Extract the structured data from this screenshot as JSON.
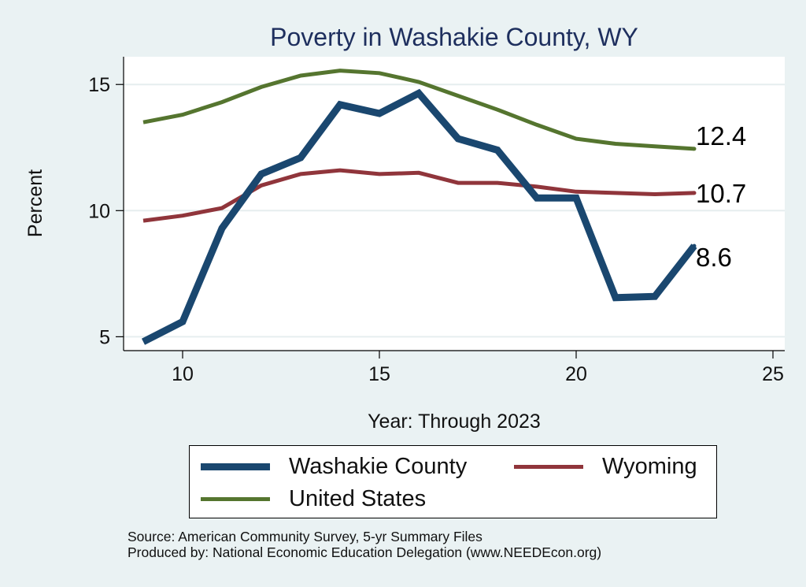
{
  "chart_data": {
    "type": "line",
    "title": "Poverty in Washakie County, WY",
    "xlabel": "Year: Through 2023",
    "ylabel": "Percent",
    "xlim": [
      8.5,
      25.3
    ],
    "ylim": [
      4.45,
      16.1
    ],
    "xticks": [
      10,
      15,
      20,
      25
    ],
    "yticks": [
      5,
      10,
      15
    ],
    "grid": "horizontal",
    "legend_position": "bottom",
    "x": [
      9,
      10,
      11,
      12,
      13,
      14,
      15,
      16,
      17,
      18,
      19,
      20,
      21,
      22,
      23
    ],
    "series": [
      {
        "name": "Washakie County",
        "color": "#1a476f",
        "width": 9,
        "values": [
          4.8,
          5.6,
          9.3,
          11.45,
          12.1,
          14.2,
          13.85,
          14.65,
          12.85,
          12.4,
          10.5,
          10.5,
          6.55,
          6.6,
          8.6
        ],
        "end_label": "8.6"
      },
      {
        "name": "Wyoming",
        "color": "#90353b",
        "width": 5,
        "values": [
          9.6,
          9.8,
          10.1,
          11.0,
          11.45,
          11.6,
          11.45,
          11.5,
          11.1,
          11.1,
          10.95,
          10.75,
          10.7,
          10.65,
          10.7
        ],
        "end_label": "10.7"
      },
      {
        "name": "United States",
        "color": "#55752f",
        "width": 5,
        "values": [
          13.5,
          13.8,
          14.3,
          14.9,
          15.35,
          15.55,
          15.45,
          15.1,
          14.55,
          14.0,
          13.4,
          12.85,
          12.65,
          12.55,
          12.45
        ],
        "end_label": "12.4"
      }
    ]
  },
  "legend": {
    "items": [
      {
        "label": "Washakie County",
        "color": "#1a476f"
      },
      {
        "label": "Wyoming",
        "color": "#90353b"
      },
      {
        "label": "United States",
        "color": "#55752f"
      }
    ]
  },
  "source": {
    "line1": "Source: American Community Survey, 5-yr Summary Files",
    "line2": "Produced by: National Economic Education Delegation (www.NEEDEcon.org)"
  }
}
